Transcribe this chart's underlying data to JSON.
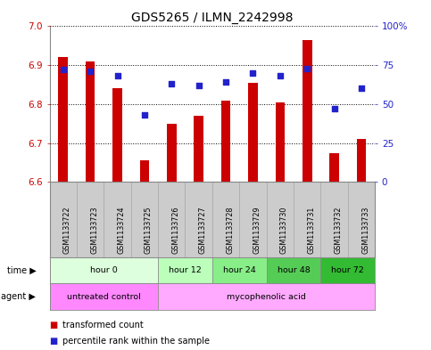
{
  "title": "GDS5265 / ILMN_2242998",
  "samples": [
    "GSM1133722",
    "GSM1133723",
    "GSM1133724",
    "GSM1133725",
    "GSM1133726",
    "GSM1133727",
    "GSM1133728",
    "GSM1133729",
    "GSM1133730",
    "GSM1133731",
    "GSM1133732",
    "GSM1133733"
  ],
  "bar_values": [
    6.92,
    6.91,
    6.84,
    6.655,
    6.75,
    6.77,
    6.81,
    6.855,
    6.805,
    6.965,
    6.675,
    6.71
  ],
  "bar_bottom": 6.6,
  "dot_values": [
    72,
    71,
    68,
    43,
    63,
    62,
    64,
    70,
    68,
    73,
    47,
    60
  ],
  "ylim_left": [
    6.6,
    7.0
  ],
  "ylim_right": [
    0,
    100
  ],
  "yticks_left": [
    6.6,
    6.7,
    6.8,
    6.9,
    7.0
  ],
  "yticks_right": [
    0,
    25,
    50,
    75,
    100
  ],
  "ytick_labels_right": [
    "0",
    "25",
    "50",
    "75",
    "100%"
  ],
  "bar_color": "#cc0000",
  "dot_color": "#2222cc",
  "grid_color": "#000000",
  "plot_bg": "#ffffff",
  "time_groups": [
    {
      "label": "hour 0",
      "start": 0,
      "end": 4,
      "color": "#ddffdd"
    },
    {
      "label": "hour 12",
      "start": 4,
      "end": 6,
      "color": "#bbffbb"
    },
    {
      "label": "hour 24",
      "start": 6,
      "end": 8,
      "color": "#88ee88"
    },
    {
      "label": "hour 48",
      "start": 8,
      "end": 10,
      "color": "#55cc55"
    },
    {
      "label": "hour 72",
      "start": 10,
      "end": 12,
      "color": "#33bb33"
    }
  ],
  "agent_groups": [
    {
      "label": "untreated control",
      "start": 0,
      "end": 4,
      "color": "#ff88ff"
    },
    {
      "label": "mycophenolic acid",
      "start": 4,
      "end": 12,
      "color": "#ffaaff"
    }
  ],
  "ylabel_left_color": "#cc0000",
  "ylabel_right_color": "#2222cc",
  "title_fontsize": 10,
  "tick_fontsize": 7.5,
  "sample_col_bg": "#cccccc",
  "sample_col_border": "#aaaaaa",
  "bar_width": 0.35
}
